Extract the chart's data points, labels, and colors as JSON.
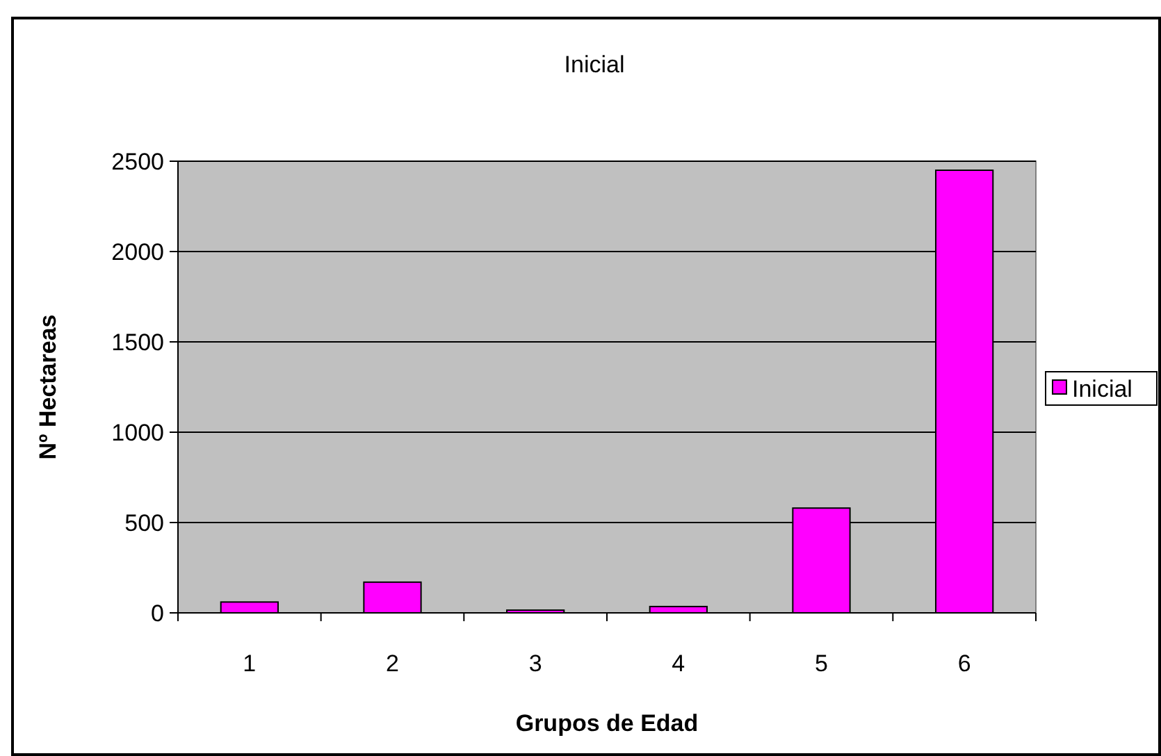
{
  "chart_data": {
    "type": "bar",
    "title": "Inicial",
    "xlabel": "Grupos de Edad",
    "ylabel": "Nº Hectareas",
    "categories": [
      "1",
      "2",
      "3",
      "4",
      "5",
      "6"
    ],
    "series": [
      {
        "name": "Inicial",
        "color": "#ff00ff",
        "values": [
          60,
          170,
          15,
          35,
          580,
          2450
        ]
      }
    ],
    "ylim": [
      0,
      2500
    ],
    "yticks": [
      0,
      500,
      1000,
      1500,
      2000,
      2500
    ],
    "grid": "y",
    "legend": "right"
  }
}
